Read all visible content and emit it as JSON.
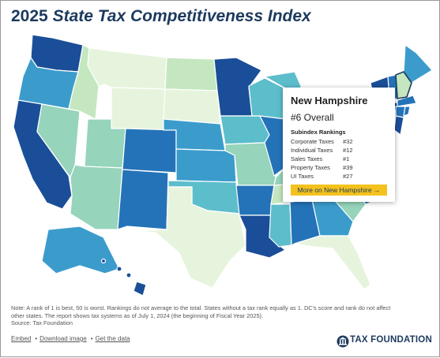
{
  "title": {
    "year": "2025",
    "main": "State Tax Competitiveness Index"
  },
  "tooltip": {
    "state": "New Hampshire",
    "overall": "#6 Overall",
    "subindex_heading": "Subindex Rankings",
    "rows": [
      {
        "label": "Corporate Taxes",
        "value": "#32"
      },
      {
        "label": "Individual Taxes",
        "value": "#12"
      },
      {
        "label": "Sales Taxes",
        "value": "#1"
      },
      {
        "label": "Property Taxes",
        "value": "#39"
      },
      {
        "label": "UI Taxes",
        "value": "#27"
      }
    ],
    "button_label": "More on New Hampshire →"
  },
  "note": {
    "line1": "Note: A rank of 1 is best, 50 is worst. Rankings do not average to the total. States without a tax rank equally as 1. DC's score and rank do not affect",
    "line2": "other states. The report shows tax systems as of July 1, 2024 (the beginning of Fiscal Year 2025).",
    "line3": "Source: Tax Foundation"
  },
  "footer": {
    "embed": "Embed",
    "download": "Download image",
    "data": "Get the data",
    "separator": "•"
  },
  "brand": {
    "name": "TAX FOUNDATION",
    "logo_icon": "tax-foundation-logo-icon"
  },
  "map_colors": {
    "c1": "#e6f4dd",
    "c2": "#c4e7bf",
    "c3": "#96d4bb",
    "c4": "#5cbdcb",
    "c5": "#3b9ccc",
    "c6": "#2473b8",
    "c7": "#1a4e98",
    "highlight": "#c4e7bf",
    "outline": "#1c3a5e"
  }
}
